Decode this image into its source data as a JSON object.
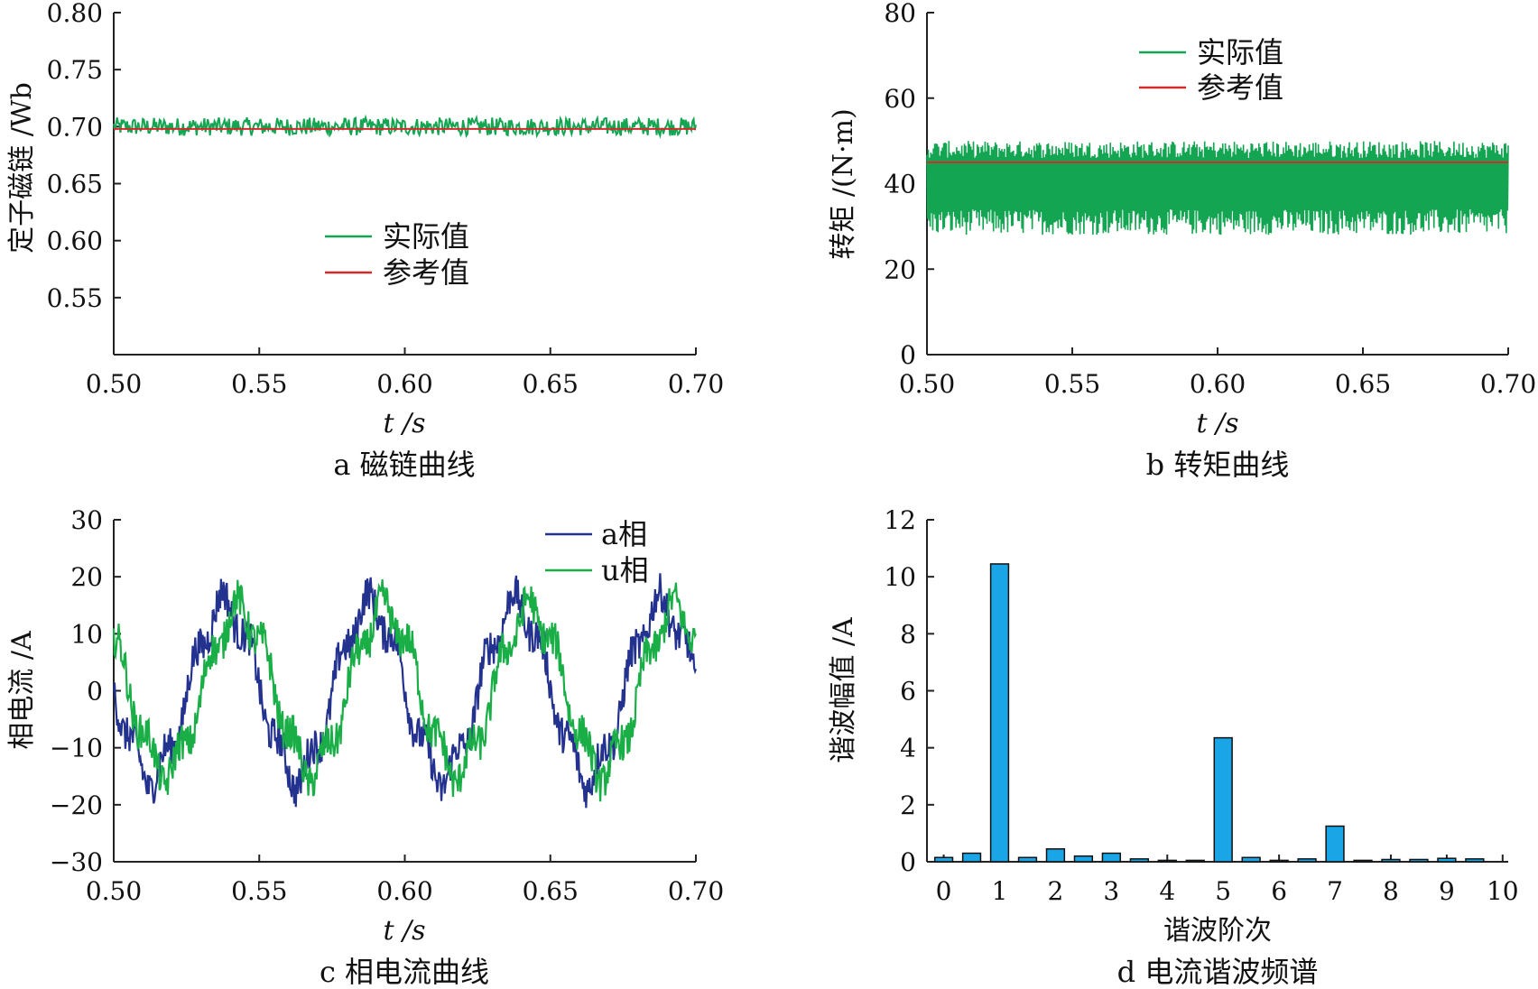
{
  "colors": {
    "actual": "#13a552",
    "reference": "#d42a2a",
    "phase_a": "#23318f",
    "phase_u": "#1aae47",
    "bar_fill": "#1aa6e6",
    "bar_stroke": "#111111",
    "axis": "#222222"
  },
  "chart_data": [
    {
      "type": "line",
      "caption": "a 磁链曲线",
      "ylabel": "定子磁链 /Wb",
      "xlabel": "t /s",
      "xlim": [
        0.5,
        0.7
      ],
      "ylim": [
        0.5,
        0.8
      ],
      "xticks": [
        "0.50",
        "0.55",
        "0.60",
        "0.65",
        "0.70"
      ],
      "yticks": [
        "0.80",
        "0.75",
        "0.70",
        "0.65",
        "0.60",
        "0.55"
      ],
      "legend": {
        "position": "center",
        "entries": [
          "实际值",
          "参考值"
        ]
      },
      "series": [
        {
          "name": "实际值",
          "kind": "noisy",
          "mean": 0.7,
          "amplitude": 0.008
        },
        {
          "name": "参考值",
          "kind": "constant",
          "value": 0.698
        }
      ]
    },
    {
      "type": "line",
      "caption": "b 转矩曲线",
      "ylabel": "转矩 /(N·m)",
      "xlabel": "t /s",
      "xlim": [
        0.5,
        0.7
      ],
      "ylim": [
        0,
        80
      ],
      "xticks": [
        "0.50",
        "0.55",
        "0.60",
        "0.65",
        "0.70"
      ],
      "yticks": [
        "80",
        "60",
        "40",
        "20",
        "0"
      ],
      "legend": {
        "position": "top-center",
        "entries": [
          "实际值",
          "参考值"
        ]
      },
      "series": [
        {
          "name": "实际值",
          "kind": "noisy-band",
          "upper_max": 50,
          "upper_min": 46,
          "lower_max": 34,
          "lower_min": 28
        },
        {
          "name": "参考值",
          "kind": "constant",
          "value": 45
        }
      ]
    },
    {
      "type": "line",
      "caption": "c 相电流曲线",
      "ylabel": "相电流 /A",
      "xlabel": "t /s",
      "xlim": [
        0.5,
        0.7
      ],
      "ylim": [
        -30,
        30
      ],
      "xticks": [
        "0.50",
        "0.55",
        "0.60",
        "0.65",
        "0.70"
      ],
      "yticks": [
        "30",
        "20",
        "10",
        "0",
        "−10",
        "−20",
        "−30"
      ],
      "legend": {
        "position": "top-right",
        "entries": [
          "a相",
          "u相"
        ]
      },
      "series": [
        {
          "name": "a相",
          "kind": "sine",
          "amplitude": 15,
          "period": 0.05,
          "peak_t": 0.538
        },
        {
          "name": "u相",
          "kind": "sine",
          "amplitude": 14,
          "period": 0.05,
          "peak_t": 0.543
        }
      ]
    },
    {
      "type": "bar",
      "caption": "d 电流谐波频谱",
      "ylabel": "谐波幅值 /A",
      "xlabel": "谐波阶次",
      "xlim": [
        -0.3,
        10.1
      ],
      "ylim": [
        0,
        12
      ],
      "xticks": [
        "0",
        "1",
        "2",
        "3",
        "4",
        "5",
        "6",
        "7",
        "8",
        "9",
        "10"
      ],
      "yticks": [
        "12",
        "10",
        "8",
        "6",
        "4",
        "2",
        "0"
      ],
      "x": [
        0,
        0.5,
        1,
        1.5,
        2,
        2.5,
        3,
        3.5,
        4,
        4.5,
        5,
        5.5,
        6,
        6.5,
        7,
        7.5,
        8,
        8.5,
        9,
        9.5
      ],
      "values": [
        0.15,
        0.3,
        10.45,
        0.15,
        0.45,
        0.2,
        0.3,
        0.1,
        0.05,
        0.05,
        4.35,
        0.15,
        0.05,
        0.1,
        1.25,
        0.05,
        0.08,
        0.08,
        0.12,
        0.1
      ]
    }
  ]
}
